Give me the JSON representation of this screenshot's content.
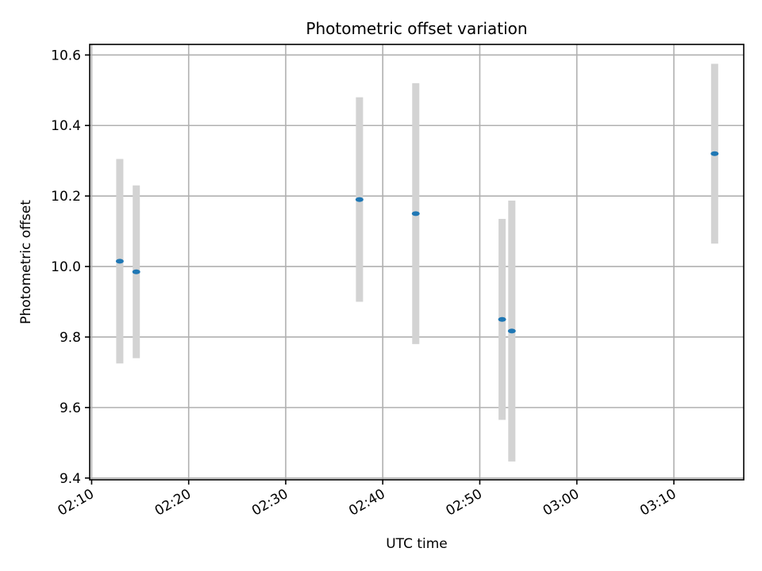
{
  "chart_data": {
    "type": "scatter",
    "title": "Photometric offset variation",
    "xlabel": "UTC time",
    "ylabel": "Photometric offset",
    "x_ticks": [
      "02:10",
      "02:20",
      "02:30",
      "02:40",
      "02:50",
      "03:00",
      "03:10"
    ],
    "y_ticks": [
      "9.4",
      "9.6",
      "9.8",
      "10.0",
      "10.2",
      "10.4",
      "10.6"
    ],
    "xlim": [
      "02:09.8",
      "03:17.2"
    ],
    "ylim": [
      9.395,
      10.63
    ],
    "grid": true,
    "marker_color": "#1f77b4",
    "errorbar_color": "#d3d3d3",
    "points": [
      {
        "x": "02:12.9",
        "y": 10.015,
        "yerr": 0.29
      },
      {
        "x": "02:14.6",
        "y": 9.985,
        "yerr": 0.245
      },
      {
        "x": "02:37.6",
        "y": 10.19,
        "yerr": 0.29
      },
      {
        "x": "02:43.4",
        "y": 10.15,
        "yerr": 0.37
      },
      {
        "x": "02:52.3",
        "y": 9.85,
        "yerr": 0.285
      },
      {
        "x": "02:53.3",
        "y": 9.817,
        "yerr": 0.37
      },
      {
        "x": "03:14.2",
        "y": 10.32,
        "yerr": 0.255
      }
    ]
  }
}
